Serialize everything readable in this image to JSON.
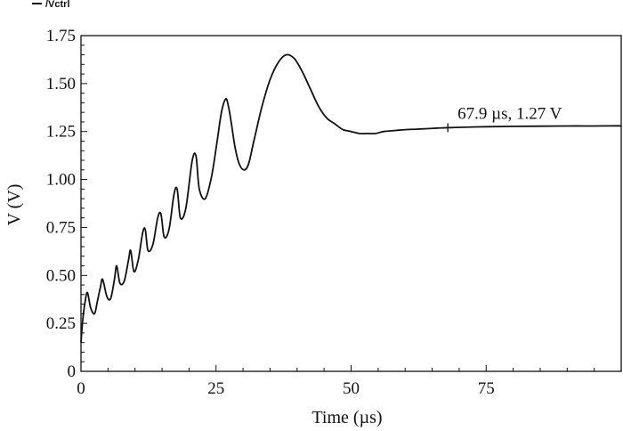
{
  "chart_data": {
    "type": "line",
    "title": "",
    "legend": {
      "entries": [
        "/Vctrl"
      ],
      "position": "top-left"
    },
    "xlabel": "Time (µs)",
    "ylabel": "V (V)",
    "xlim": [
      0,
      100
    ],
    "ylim": [
      0,
      1.75
    ],
    "xticks": [
      0,
      25,
      50,
      75
    ],
    "xtick_labels": [
      "0",
      "25",
      "50",
      "75"
    ],
    "yticks": [
      0,
      0.25,
      0.5,
      0.75,
      1.0,
      1.25,
      1.5,
      1.75
    ],
    "ytick_labels": [
      "0",
      "0.25",
      "0.50",
      "0.75",
      "1.00",
      "1.25",
      "1.50",
      "1.75"
    ],
    "grid": false,
    "series": [
      {
        "name": "/Vctrl",
        "x": [
          0,
          0.3,
          0.8,
          1.2,
          1.8,
          2.5,
          3.0,
          3.6,
          4.0,
          4.8,
          5.5,
          6.2,
          6.6,
          7.2,
          8.0,
          8.8,
          9.2,
          9.8,
          10.6,
          11.4,
          11.9,
          12.4,
          13.3,
          14.2,
          14.8,
          15.4,
          16.3,
          17.2,
          17.8,
          18.4,
          19.4,
          20.6,
          21.3,
          21.9,
          23.0,
          24.2,
          25.2,
          26.0,
          26.8,
          27.3,
          27.8,
          28.5,
          29.3,
          30.2,
          31.0,
          32.0,
          33.5,
          35.0,
          36.5,
          38.0,
          39.5,
          41.0,
          42.5,
          44.0,
          45.5,
          47.0,
          48.5,
          50.0,
          51.5,
          53.0,
          54.5,
          56.0,
          58.0,
          60.0,
          62.0,
          64.0,
          66.0,
          67.9,
          70.0,
          75.0,
          80.0,
          85.0,
          90.0,
          95.0,
          100.0
        ],
        "y": [
          0.15,
          0.26,
          0.37,
          0.41,
          0.33,
          0.3,
          0.36,
          0.44,
          0.48,
          0.39,
          0.38,
          0.48,
          0.55,
          0.46,
          0.47,
          0.58,
          0.63,
          0.52,
          0.58,
          0.72,
          0.74,
          0.63,
          0.66,
          0.8,
          0.82,
          0.7,
          0.74,
          0.92,
          0.95,
          0.8,
          0.85,
          1.1,
          1.12,
          0.95,
          0.9,
          1.02,
          1.2,
          1.35,
          1.42,
          1.38,
          1.3,
          1.17,
          1.08,
          1.05,
          1.08,
          1.2,
          1.38,
          1.52,
          1.61,
          1.65,
          1.63,
          1.56,
          1.47,
          1.38,
          1.32,
          1.29,
          1.26,
          1.25,
          1.24,
          1.24,
          1.24,
          1.25,
          1.255,
          1.26,
          1.262,
          1.265,
          1.268,
          1.27,
          1.272,
          1.275,
          1.277,
          1.278,
          1.279,
          1.279,
          1.28
        ]
      }
    ],
    "annotations": [
      {
        "text": "67.9 µs, 1.27 V",
        "x": 67.9,
        "y": 1.27
      }
    ]
  }
}
